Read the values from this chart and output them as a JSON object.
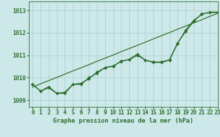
{
  "title": "Graphe pression niveau de la mer (hPa)",
  "bg_color": "#cce8e8",
  "grid_color": "#aacccc",
  "line_color": "#2d6e2d",
  "xlim": [
    -0.5,
    23
  ],
  "ylim": [
    1008.7,
    1013.4
  ],
  "yticks": [
    1009,
    1010,
    1011,
    1012,
    1013
  ],
  "xticks": [
    0,
    1,
    2,
    3,
    4,
    5,
    6,
    7,
    8,
    9,
    10,
    11,
    12,
    13,
    14,
    15,
    16,
    17,
    18,
    19,
    20,
    21,
    22,
    23
  ],
  "series1": [
    1009.7,
    1009.4,
    1009.55,
    1009.3,
    1009.35,
    1009.7,
    1009.75,
    1009.95,
    1010.25,
    1010.45,
    1010.52,
    1010.72,
    1010.82,
    1011.05,
    1010.78,
    1010.68,
    1010.68,
    1010.78,
    1011.52,
    1012.12,
    1012.55,
    1012.82,
    1012.92,
    1012.92
  ],
  "series2": [
    1009.7,
    1009.4,
    1009.6,
    1009.3,
    1009.3,
    1009.7,
    1009.7,
    1010.0,
    1010.2,
    1010.45,
    1010.5,
    1010.75,
    1010.8,
    1011.0,
    1010.78,
    1010.7,
    1010.7,
    1010.8,
    1011.55,
    1012.05,
    1012.5,
    1012.85,
    1012.9,
    1012.9
  ],
  "trend": [
    1009.58,
    1009.73,
    1009.87,
    1010.01,
    1010.16,
    1010.3,
    1010.44,
    1010.58,
    1010.73,
    1010.87,
    1011.01,
    1011.16,
    1011.3,
    1011.44,
    1011.58,
    1011.73,
    1011.87,
    1012.01,
    1012.16,
    1012.3,
    1012.44,
    1012.58,
    1012.73,
    1012.87
  ],
  "marker": "D",
  "markersize": 2.0,
  "linewidth": 0.9,
  "tick_fontsize": 5.8,
  "title_fontsize": 6.5
}
